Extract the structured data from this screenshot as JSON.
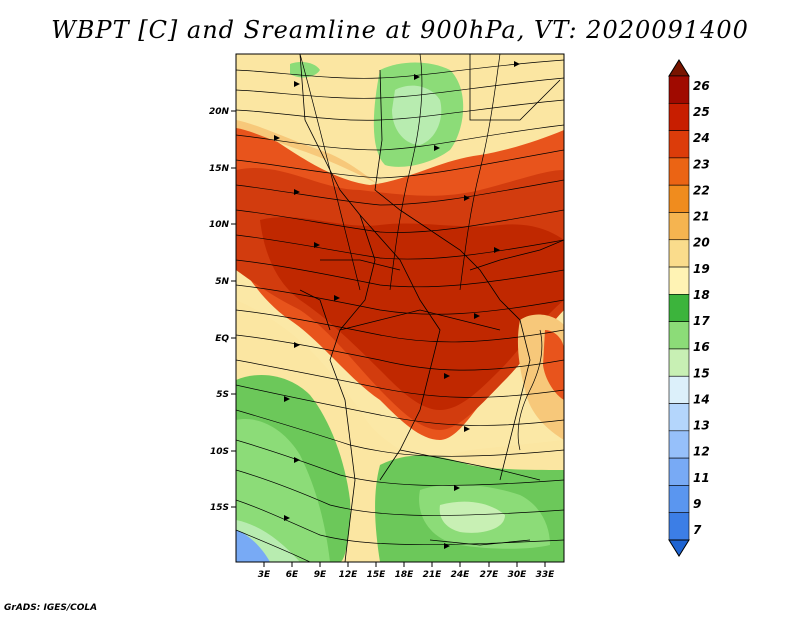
{
  "title": "WBPT [C] and Sreamline at 900hPa, VT: 2020091400",
  "credit": "GrADS: IGES/COLA",
  "map": {
    "lat_labels": [
      "20N",
      "15N",
      "10N",
      "5N",
      "EQ",
      "5S",
      "10S",
      "15S"
    ],
    "lon_labels": [
      "3E",
      "6E",
      "9E",
      "12E",
      "15E",
      "18E",
      "21E",
      "24E",
      "27E",
      "30E",
      "33E"
    ],
    "field": "WBPT",
    "overlay": "streamlines"
  },
  "colorbar": {
    "levels": [
      "7",
      "9",
      "11",
      "12",
      "13",
      "14",
      "15",
      "16",
      "17",
      "18",
      "19",
      "20",
      "21",
      "22",
      "23",
      "24",
      "25",
      "26"
    ],
    "colors": [
      "#1e64d2",
      "#3c7ee6",
      "#5a96f0",
      "#78aaf5",
      "#96c0fa",
      "#b4d6fc",
      "#dcf0fa",
      "#c8f0b4",
      "#8cdc78",
      "#3cb43c",
      "#fff3b4",
      "#fadc8c",
      "#f5b450",
      "#f08c1e",
      "#eb6414",
      "#dc3c0a",
      "#c81e00",
      "#a00a00",
      "#781400"
    ]
  }
}
